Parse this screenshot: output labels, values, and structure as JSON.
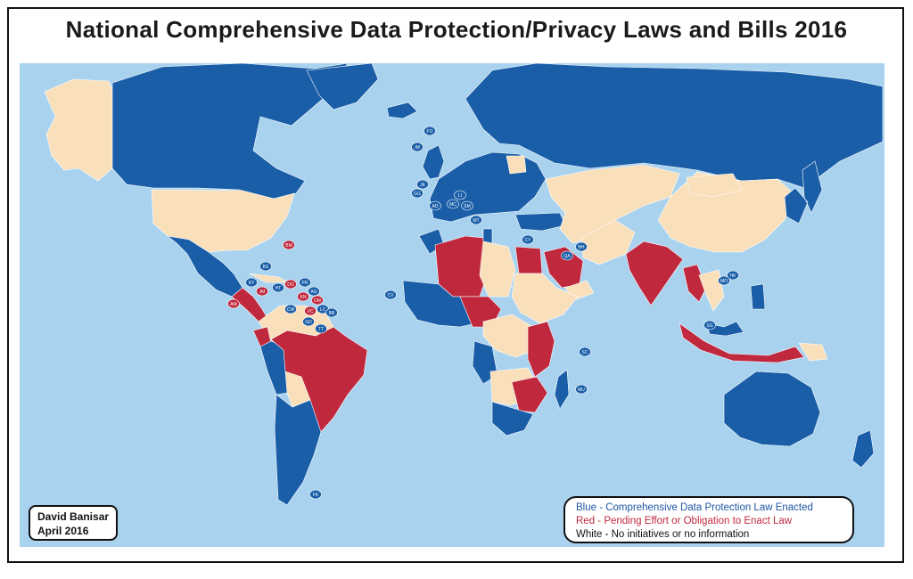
{
  "title": "National Comprehensive Data Protection/Privacy Laws and Bills 2016",
  "author": {
    "name": "David Banisar",
    "date": "April 2016"
  },
  "legend": {
    "blue": "Blue - Comprehensive Data Protection Law Enacted",
    "red": "Red - Pending Effort or Obligation to Enact Law",
    "white": "White - No initiatives or no information"
  },
  "colors": {
    "enacted": "#1a5ea8",
    "pending": "#c0283d",
    "none": "#f9dfba",
    "ocean": "#a9d2ee"
  },
  "badges": [
    {
      "code": "FO",
      "status": "enacted"
    },
    {
      "code": "IM",
      "status": "enacted"
    },
    {
      "code": "JE",
      "status": "enacted"
    },
    {
      "code": "GG",
      "status": "enacted"
    },
    {
      "code": "AD",
      "status": "enacted"
    },
    {
      "code": "MC",
      "status": "enacted"
    },
    {
      "code": "SM",
      "status": "enacted"
    },
    {
      "code": "MT",
      "status": "enacted"
    },
    {
      "code": "LI",
      "status": "enacted"
    },
    {
      "code": "CY",
      "status": "enacted"
    },
    {
      "code": "BM",
      "status": "pending"
    },
    {
      "code": "BS",
      "status": "enacted"
    },
    {
      "code": "KY",
      "status": "enacted"
    },
    {
      "code": "JM",
      "status": "pending"
    },
    {
      "code": "HT",
      "status": "enacted"
    },
    {
      "code": "DO",
      "status": "pending"
    },
    {
      "code": "PR",
      "status": "enacted"
    },
    {
      "code": "AG",
      "status": "enacted"
    },
    {
      "code": "KN",
      "status": "pending"
    },
    {
      "code": "DM",
      "status": "pending"
    },
    {
      "code": "LC",
      "status": "enacted"
    },
    {
      "code": "VC",
      "status": "pending"
    },
    {
      "code": "BB",
      "status": "enacted"
    },
    {
      "code": "GD",
      "status": "enacted"
    },
    {
      "code": "TT",
      "status": "enacted"
    },
    {
      "code": "AW",
      "status": "pending"
    },
    {
      "code": "CW",
      "status": "enacted"
    },
    {
      "code": "CV",
      "status": "enacted"
    },
    {
      "code": "SC",
      "status": "enacted"
    },
    {
      "code": "MU",
      "status": "enacted"
    },
    {
      "code": "BH",
      "status": "enacted"
    },
    {
      "code": "QA",
      "status": "enacted"
    },
    {
      "code": "HK",
      "status": "enacted"
    },
    {
      "code": "MO",
      "status": "enacted"
    },
    {
      "code": "SG",
      "status": "enacted"
    },
    {
      "code": "FK",
      "status": "enacted"
    }
  ]
}
